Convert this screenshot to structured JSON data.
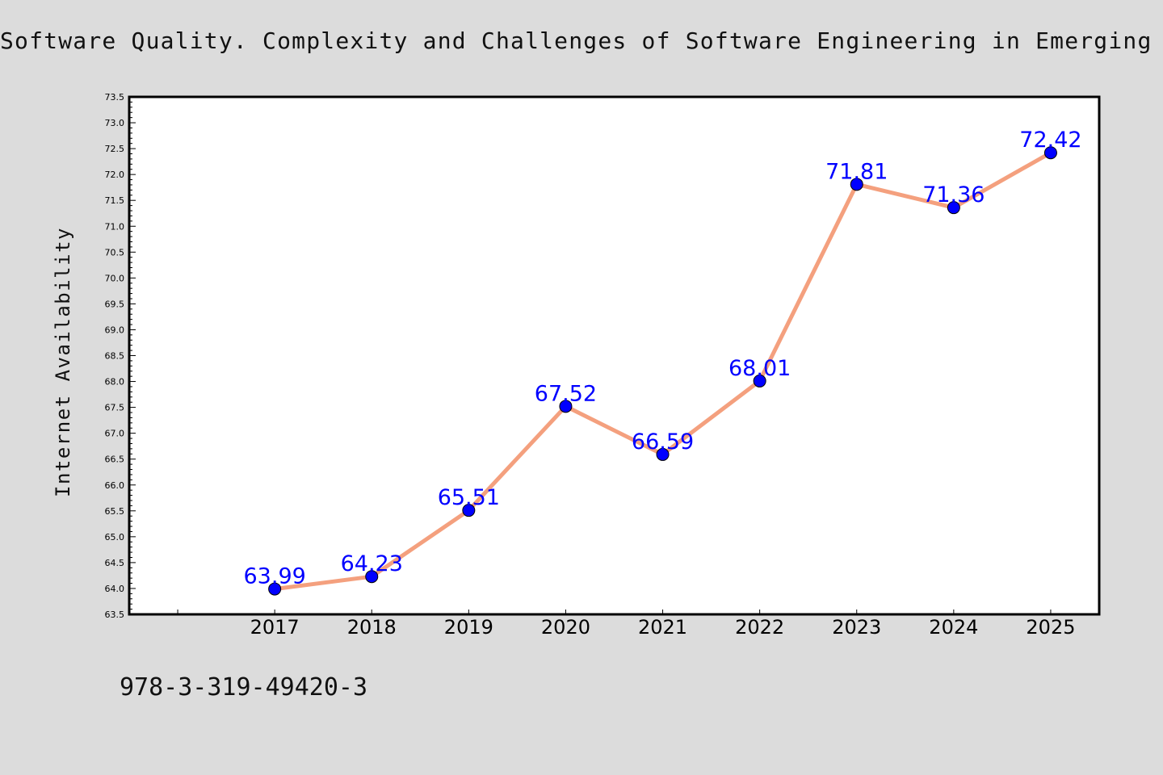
{
  "title": "Software Quality. Complexity and Challenges of Software Engineering in Emerging",
  "footer_text": "978-3-319-49420-3",
  "colors": {
    "background": "#dcdcdc",
    "plot_background": "#ffffff",
    "line": "#f4a07e",
    "marker": "#0000ff",
    "data_label": "#0000ff"
  },
  "chart_data": {
    "type": "line",
    "ylabel": "Internet Availability",
    "xlabel": "",
    "categories": [
      "2017",
      "2018",
      "2019",
      "2020",
      "2021",
      "2022",
      "2023",
      "2024",
      "2025"
    ],
    "series": [
      {
        "values": [
          63.99,
          64.23,
          65.51,
          67.52,
          66.59,
          68.01,
          71.81,
          71.36,
          72.42
        ]
      }
    ],
    "data_labels": [
      "63.99",
      "64.23",
      "65.51",
      "67.52",
      "66.59",
      "68.01",
      "71.81",
      "71.36",
      "72.42"
    ],
    "ylim": [
      63.5,
      73.5
    ],
    "y_major_step": 0.5,
    "y_tick_labels": [
      "63.5",
      "64.0",
      "64.5",
      "65.0",
      "65.5",
      "66.0",
      "66.5",
      "67.0",
      "67.5",
      "68.0",
      "68.5",
      "69.0",
      "69.5",
      "70.0",
      "70.5",
      "71.0",
      "71.5",
      "72.0",
      "72.5",
      "73.0",
      "73.5"
    ],
    "grid": false,
    "legend": "none"
  }
}
